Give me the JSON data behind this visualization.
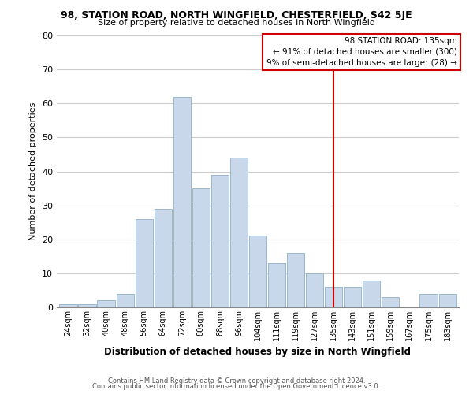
{
  "title1": "98, STATION ROAD, NORTH WINGFIELD, CHESTERFIELD, S42 5JE",
  "title2": "Size of property relative to detached houses in North Wingfield",
  "xlabel": "Distribution of detached houses by size in North Wingfield",
  "ylabel": "Number of detached properties",
  "bar_color": "#c8d8ea",
  "bar_edge_color": "#9ab8cc",
  "categories": [
    "24sqm",
    "32sqm",
    "40sqm",
    "48sqm",
    "56sqm",
    "64sqm",
    "72sqm",
    "80sqm",
    "88sqm",
    "96sqm",
    "104sqm",
    "111sqm",
    "119sqm",
    "127sqm",
    "135sqm",
    "143sqm",
    "151sqm",
    "159sqm",
    "167sqm",
    "175sqm",
    "183sqm"
  ],
  "values": [
    1,
    1,
    2,
    4,
    26,
    29,
    62,
    35,
    39,
    44,
    21,
    13,
    16,
    10,
    6,
    6,
    8,
    3,
    0,
    4,
    4
  ],
  "ylim": [
    0,
    80
  ],
  "yticks": [
    0,
    10,
    20,
    30,
    40,
    50,
    60,
    70,
    80
  ],
  "vline_x": 14,
  "vline_color": "#cc0000",
  "annotation_title": "98 STATION ROAD: 135sqm",
  "annotation_line1": "← 91% of detached houses are smaller (300)",
  "annotation_line2": "9% of semi-detached houses are larger (28) →",
  "footer1": "Contains HM Land Registry data © Crown copyright and database right 2024.",
  "footer2": "Contains public sector information licensed under the Open Government Licence v3.0.",
  "background_color": "#ffffff",
  "grid_color": "#cccccc"
}
